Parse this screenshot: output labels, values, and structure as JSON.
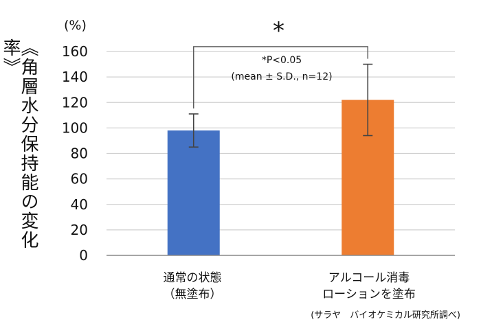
{
  "chart_data": {
    "type": "bar",
    "title": "",
    "ylabel": "《角層水分保持能の変化率》",
    "yunit": "(%)",
    "ylim": [
      0,
      160
    ],
    "yticks": [
      "0",
      "20",
      "40",
      "60",
      "80",
      "100",
      "120",
      "140",
      "160"
    ],
    "grid": true,
    "categories": [
      {
        "lines": [
          "通常の状態",
          "（無塗布）"
        ]
      },
      {
        "lines": [
          "アルコール消毒",
          "ローションを塗布"
        ]
      }
    ],
    "values": [
      98,
      122
    ],
    "errors": [
      13,
      28
    ],
    "colors": [
      "#4472C4",
      "#ED7D31"
    ],
    "significance": {
      "marker": "*",
      "note_line1": "*P<0.05",
      "note_line2": "(mean ± S.D., n=12)"
    },
    "source": "(サラヤ　バイオケミカル研究所調べ)"
  }
}
